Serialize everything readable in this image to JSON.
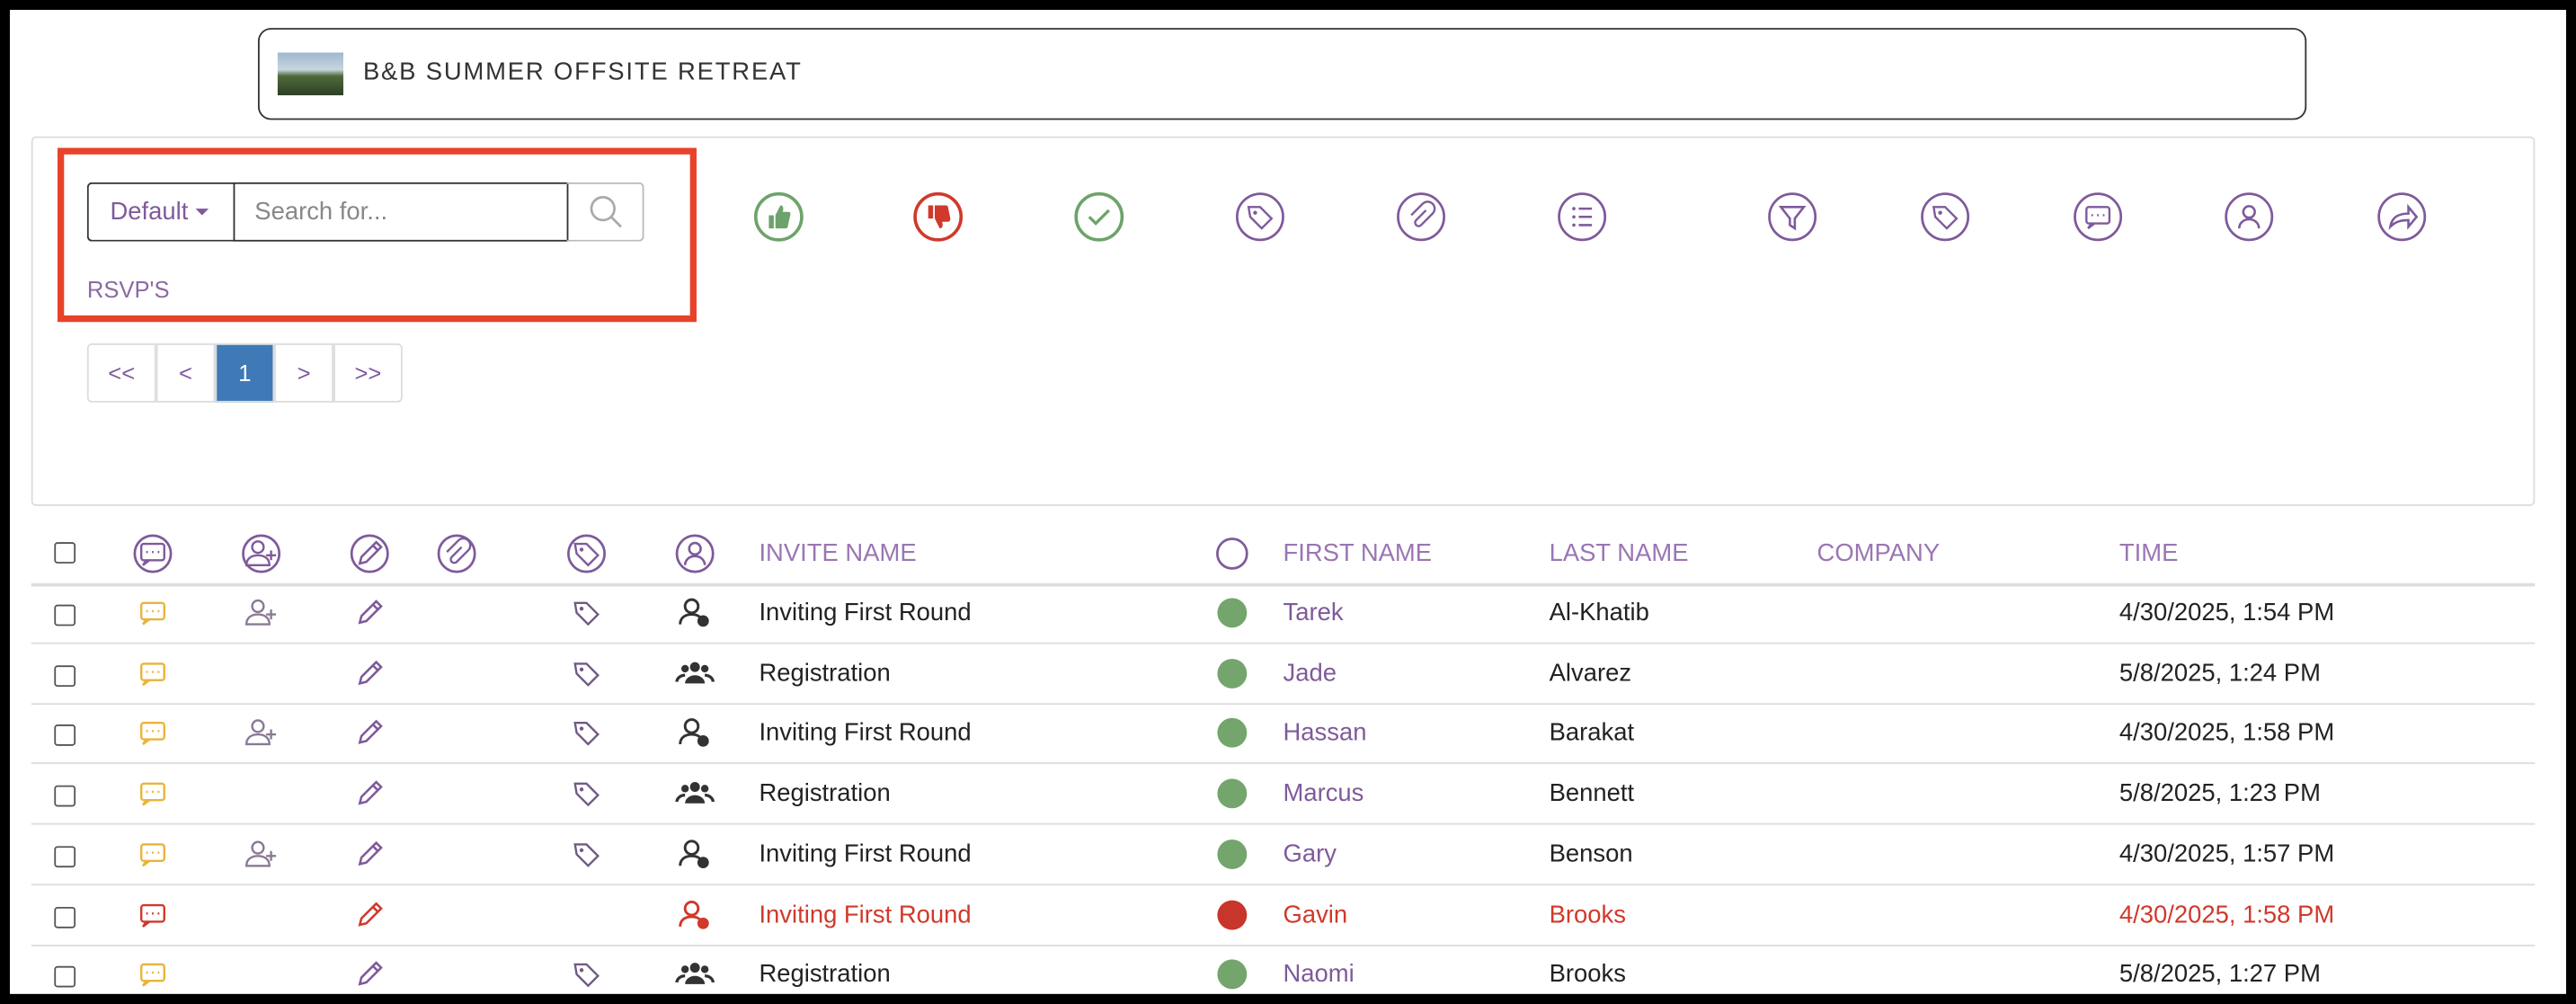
{
  "header": {
    "title": "B&B SUMMER OFFSITE RETREAT"
  },
  "toolbar": {
    "view": "Default",
    "search_placeholder": "Search for...",
    "section_label": "RSVP'S"
  },
  "pagination": [
    "<<",
    "<",
    "1",
    ">",
    ">>"
  ],
  "table": {
    "columns": [
      "INVITE NAME",
      "FIRST NAME",
      "LAST NAME",
      "COMPANY",
      "TIME"
    ],
    "rows": [
      {
        "invite": "Inviting First Round",
        "first": "Tarek",
        "last": "Al-Khatib",
        "time": "4/30/2025, 1:54 PM",
        "status": "accepted",
        "plus_one": true,
        "tag": true,
        "group": false
      },
      {
        "invite": "Registration",
        "first": "Jade",
        "last": "Alvarez",
        "time": "5/8/2025, 1:24 PM",
        "status": "accepted",
        "plus_one": false,
        "tag": true,
        "group": true
      },
      {
        "invite": "Inviting First Round",
        "first": "Hassan",
        "last": "Barakat",
        "time": "4/30/2025, 1:58 PM",
        "status": "accepted",
        "plus_one": true,
        "tag": true,
        "group": false
      },
      {
        "invite": "Registration",
        "first": "Marcus",
        "last": "Bennett",
        "time": "5/8/2025, 1:23 PM",
        "status": "accepted",
        "plus_one": false,
        "tag": true,
        "group": true
      },
      {
        "invite": "Inviting First Round",
        "first": "Gary",
        "last": "Benson",
        "time": "4/30/2025, 1:57 PM",
        "status": "accepted",
        "plus_one": true,
        "tag": true,
        "group": false
      },
      {
        "invite": "Inviting First Round",
        "first": "Gavin",
        "last": "Brooks",
        "time": "4/30/2025, 1:58 PM",
        "status": "declined",
        "plus_one": false,
        "tag": false,
        "group": false
      },
      {
        "invite": "Registration",
        "first": "Naomi",
        "last": "Brooks",
        "time": "5/8/2025, 1:27 PM",
        "status": "accepted",
        "plus_one": false,
        "tag": true,
        "group": true
      }
    ]
  }
}
